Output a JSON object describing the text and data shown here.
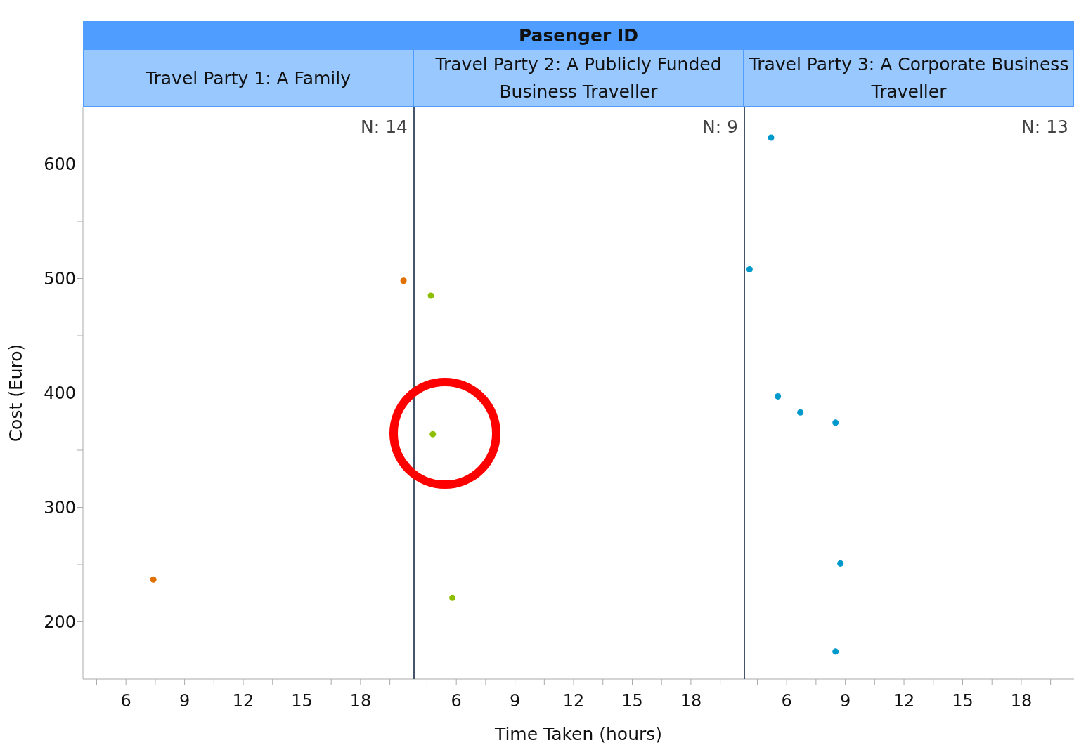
{
  "chart_data": [
    {
      "type": "scatter",
      "subtitle": "Travel Party 1: A Family",
      "ylabel": "Cost (Euro)",
      "annotations": [
        "N: 14"
      ],
      "marker": "circle",
      "color": "#e07000",
      "x": [
        7.4,
        20.2
      ],
      "values": [
        237,
        498
      ],
      "xlim": [
        3.8,
        20.7
      ],
      "xticks": [
        {
          "value": 4.5,
          "label": null
        },
        6,
        {
          "value": 7.5,
          "label": null
        },
        9,
        {
          "value": 10.5,
          "label": null
        },
        12,
        {
          "value": 13.5,
          "label": null
        },
        15,
        {
          "value": 16.5,
          "label": null
        },
        18,
        {
          "value": 19.5,
          "label": null
        }
      ],
      "ylim": [
        150,
        650
      ],
      "yticks": [
        200,
        {
          "value": 250,
          "label": null
        },
        300,
        {
          "value": 350,
          "label": null
        },
        400,
        {
          "value": 450,
          "label": null
        },
        500,
        {
          "value": 550,
          "label": null
        },
        600
      ]
    },
    {
      "type": "scatter",
      "title": "Pasenger ID",
      "subtitle": "Travel Party 2: A Publicly Funded Business Traveller",
      "xlabel": "Time Taken (hours)",
      "annotations": [
        "N: 9"
      ],
      "marker": "circle",
      "color": "#8dbf00",
      "x": [
        4.7,
        4.8,
        5.8
      ],
      "values": [
        485,
        364,
        221
      ],
      "xlim": [
        3.8,
        20.7
      ],
      "xticks": [
        {
          "value": 4.5,
          "label": null
        },
        6,
        {
          "value": 7.5,
          "label": null
        },
        9,
        {
          "value": 10.5,
          "label": null
        },
        12,
        {
          "value": 13.5,
          "label": null
        },
        15,
        {
          "value": 16.5,
          "label": null
        },
        18,
        {
          "value": 19.5,
          "label": null
        }
      ],
      "ylim": [
        150,
        650
      ],
      "tick_labels": "x"
    },
    {
      "type": "scatter",
      "subtitle": "Travel Party 3: A Corporate Business Traveller",
      "annotations": [
        "N: 13"
      ],
      "marker": "circle",
      "color": "#0099cc",
      "x": [
        5.2,
        4.1,
        5.55,
        6.7,
        8.5,
        8.75,
        8.5
      ],
      "values": [
        623,
        508,
        397,
        383,
        374,
        251,
        174
      ],
      "xlim": [
        3.8,
        20.7
      ],
      "xticks": [
        {
          "value": 4.5,
          "label": null
        },
        6,
        {
          "value": 7.5,
          "label": null
        },
        9,
        {
          "value": 10.5,
          "label": null
        },
        12,
        {
          "value": 13.5,
          "label": null
        },
        15,
        {
          "value": 16.5,
          "label": null
        },
        18,
        {
          "value": 19.5,
          "label": null
        }
      ],
      "ylim": [
        150,
        650
      ],
      "tick_labels": "x"
    }
  ]
}
